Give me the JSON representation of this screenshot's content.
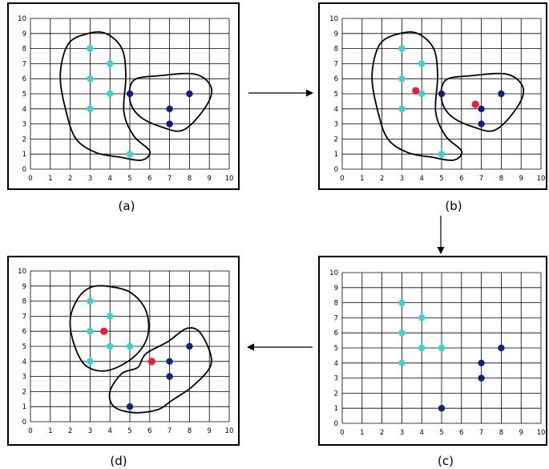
{
  "colors": {
    "cluster_a": "#33d6d6",
    "cluster_b": "#0b1f8f",
    "centroid": "#ee1c2e",
    "grid": "#000000",
    "outline": "#000000"
  },
  "axes": {
    "x_ticks": [
      "0",
      "1",
      "2",
      "3",
      "4",
      "5",
      "6",
      "7",
      "8",
      "9",
      "10"
    ],
    "y_ticks": [
      "0",
      "1",
      "2",
      "3",
      "4",
      "5",
      "6",
      "7",
      "8",
      "9",
      "10"
    ]
  },
  "panels": [
    {
      "id": "a",
      "caption": "(a)",
      "points": [
        {
          "x": 3,
          "y": 8,
          "c": "a"
        },
        {
          "x": 3,
          "y": 6,
          "c": "a"
        },
        {
          "x": 3,
          "y": 4,
          "c": "a"
        },
        {
          "x": 4,
          "y": 7,
          "c": "a"
        },
        {
          "x": 4,
          "y": 5,
          "c": "a"
        },
        {
          "x": 5,
          "y": 1,
          "c": "a"
        },
        {
          "x": 5,
          "y": 5,
          "c": "b"
        },
        {
          "x": 7,
          "y": 4,
          "c": "b"
        },
        {
          "x": 7,
          "y": 3,
          "c": "b"
        },
        {
          "x": 8,
          "y": 5,
          "c": "b"
        }
      ],
      "centroids": [],
      "regions": [
        [
          [
            2.9,
            9.0
          ],
          [
            1.9,
            8.3
          ],
          [
            1.5,
            6.2
          ],
          [
            1.8,
            3.8
          ],
          [
            2.3,
            2.0
          ],
          [
            3.3,
            1.1
          ],
          [
            4.5,
            0.8
          ],
          [
            5.6,
            0.6
          ],
          [
            6.0,
            1.2
          ],
          [
            5.2,
            2.2
          ],
          [
            4.7,
            3.8
          ],
          [
            4.8,
            6.2
          ],
          [
            4.6,
            8.0
          ],
          [
            3.8,
            9.0
          ]
        ],
        [
          [
            5.2,
            5.9
          ],
          [
            6.5,
            6.2
          ],
          [
            8.3,
            6.3
          ],
          [
            9.1,
            5.4
          ],
          [
            8.8,
            4.1
          ],
          [
            7.7,
            2.6
          ],
          [
            6.6,
            2.8
          ],
          [
            5.5,
            3.5
          ],
          [
            5.0,
            4.6
          ]
        ]
      ]
    },
    {
      "id": "b",
      "caption": "(b)",
      "points": [
        {
          "x": 3,
          "y": 8,
          "c": "a"
        },
        {
          "x": 3,
          "y": 6,
          "c": "a"
        },
        {
          "x": 3,
          "y": 4,
          "c": "a"
        },
        {
          "x": 4,
          "y": 7,
          "c": "a"
        },
        {
          "x": 4,
          "y": 5,
          "c": "a"
        },
        {
          "x": 5,
          "y": 1,
          "c": "a"
        },
        {
          "x": 5,
          "y": 5,
          "c": "b"
        },
        {
          "x": 7,
          "y": 4,
          "c": "b"
        },
        {
          "x": 7,
          "y": 3,
          "c": "b"
        },
        {
          "x": 8,
          "y": 5,
          "c": "b"
        }
      ],
      "centroids": [
        {
          "x": 3.7,
          "y": 5.2
        },
        {
          "x": 6.7,
          "y": 4.3
        }
      ],
      "regions": [
        [
          [
            2.9,
            9.0
          ],
          [
            1.9,
            8.3
          ],
          [
            1.5,
            6.2
          ],
          [
            1.8,
            3.8
          ],
          [
            2.3,
            2.0
          ],
          [
            3.3,
            1.1
          ],
          [
            4.5,
            0.8
          ],
          [
            5.6,
            0.6
          ],
          [
            6.0,
            1.2
          ],
          [
            5.2,
            2.2
          ],
          [
            4.7,
            3.8
          ],
          [
            4.8,
            6.2
          ],
          [
            4.6,
            8.0
          ],
          [
            3.8,
            9.0
          ]
        ],
        [
          [
            5.2,
            5.9
          ],
          [
            6.5,
            6.2
          ],
          [
            8.3,
            6.3
          ],
          [
            9.1,
            5.4
          ],
          [
            8.8,
            4.1
          ],
          [
            7.7,
            2.6
          ],
          [
            6.6,
            2.8
          ],
          [
            5.5,
            3.5
          ],
          [
            5.0,
            4.6
          ]
        ]
      ]
    },
    {
      "id": "c",
      "caption": "(c)",
      "points": [
        {
          "x": 3,
          "y": 8,
          "c": "a"
        },
        {
          "x": 3,
          "y": 6,
          "c": "a"
        },
        {
          "x": 3,
          "y": 4,
          "c": "a"
        },
        {
          "x": 4,
          "y": 7,
          "c": "a"
        },
        {
          "x": 4,
          "y": 5,
          "c": "a"
        },
        {
          "x": 5,
          "y": 5,
          "c": "a"
        },
        {
          "x": 5,
          "y": 1,
          "c": "b"
        },
        {
          "x": 7,
          "y": 4,
          "c": "b"
        },
        {
          "x": 7,
          "y": 3,
          "c": "b"
        },
        {
          "x": 8,
          "y": 5,
          "c": "b"
        }
      ],
      "centroids": [],
      "regions": []
    },
    {
      "id": "d",
      "caption": "(d)",
      "points": [
        {
          "x": 3,
          "y": 8,
          "c": "a"
        },
        {
          "x": 3,
          "y": 6,
          "c": "a"
        },
        {
          "x": 3,
          "y": 4,
          "c": "a"
        },
        {
          "x": 4,
          "y": 7,
          "c": "a"
        },
        {
          "x": 4,
          "y": 5,
          "c": "a"
        },
        {
          "x": 5,
          "y": 5,
          "c": "a"
        },
        {
          "x": 5,
          "y": 1,
          "c": "b"
        },
        {
          "x": 7,
          "y": 4,
          "c": "b"
        },
        {
          "x": 7,
          "y": 3,
          "c": "b"
        },
        {
          "x": 8,
          "y": 5,
          "c": "b"
        }
      ],
      "centroids": [
        {
          "x": 3.7,
          "y": 6.0
        },
        {
          "x": 6.1,
          "y": 4.0
        }
      ],
      "regions": [
        [
          [
            3.8,
            9.0
          ],
          [
            5.0,
            8.6
          ],
          [
            5.8,
            7.4
          ],
          [
            5.9,
            5.7
          ],
          [
            5.2,
            4.3
          ],
          [
            3.9,
            3.4
          ],
          [
            2.8,
            3.7
          ],
          [
            2.2,
            5.1
          ],
          [
            2.0,
            6.8
          ],
          [
            2.4,
            8.2
          ],
          [
            3.0,
            8.9
          ]
        ],
        [
          [
            5.8,
            4.5
          ],
          [
            6.9,
            5.3
          ],
          [
            7.9,
            6.2
          ],
          [
            8.6,
            5.8
          ],
          [
            9.1,
            3.9
          ],
          [
            8.2,
            2.4
          ],
          [
            7.1,
            1.4
          ],
          [
            6.4,
            0.8
          ],
          [
            5.2,
            0.6
          ],
          [
            4.2,
            1.0
          ],
          [
            4.0,
            2.0
          ],
          [
            4.6,
            3.2
          ],
          [
            5.4,
            3.6
          ]
        ]
      ]
    }
  ]
}
